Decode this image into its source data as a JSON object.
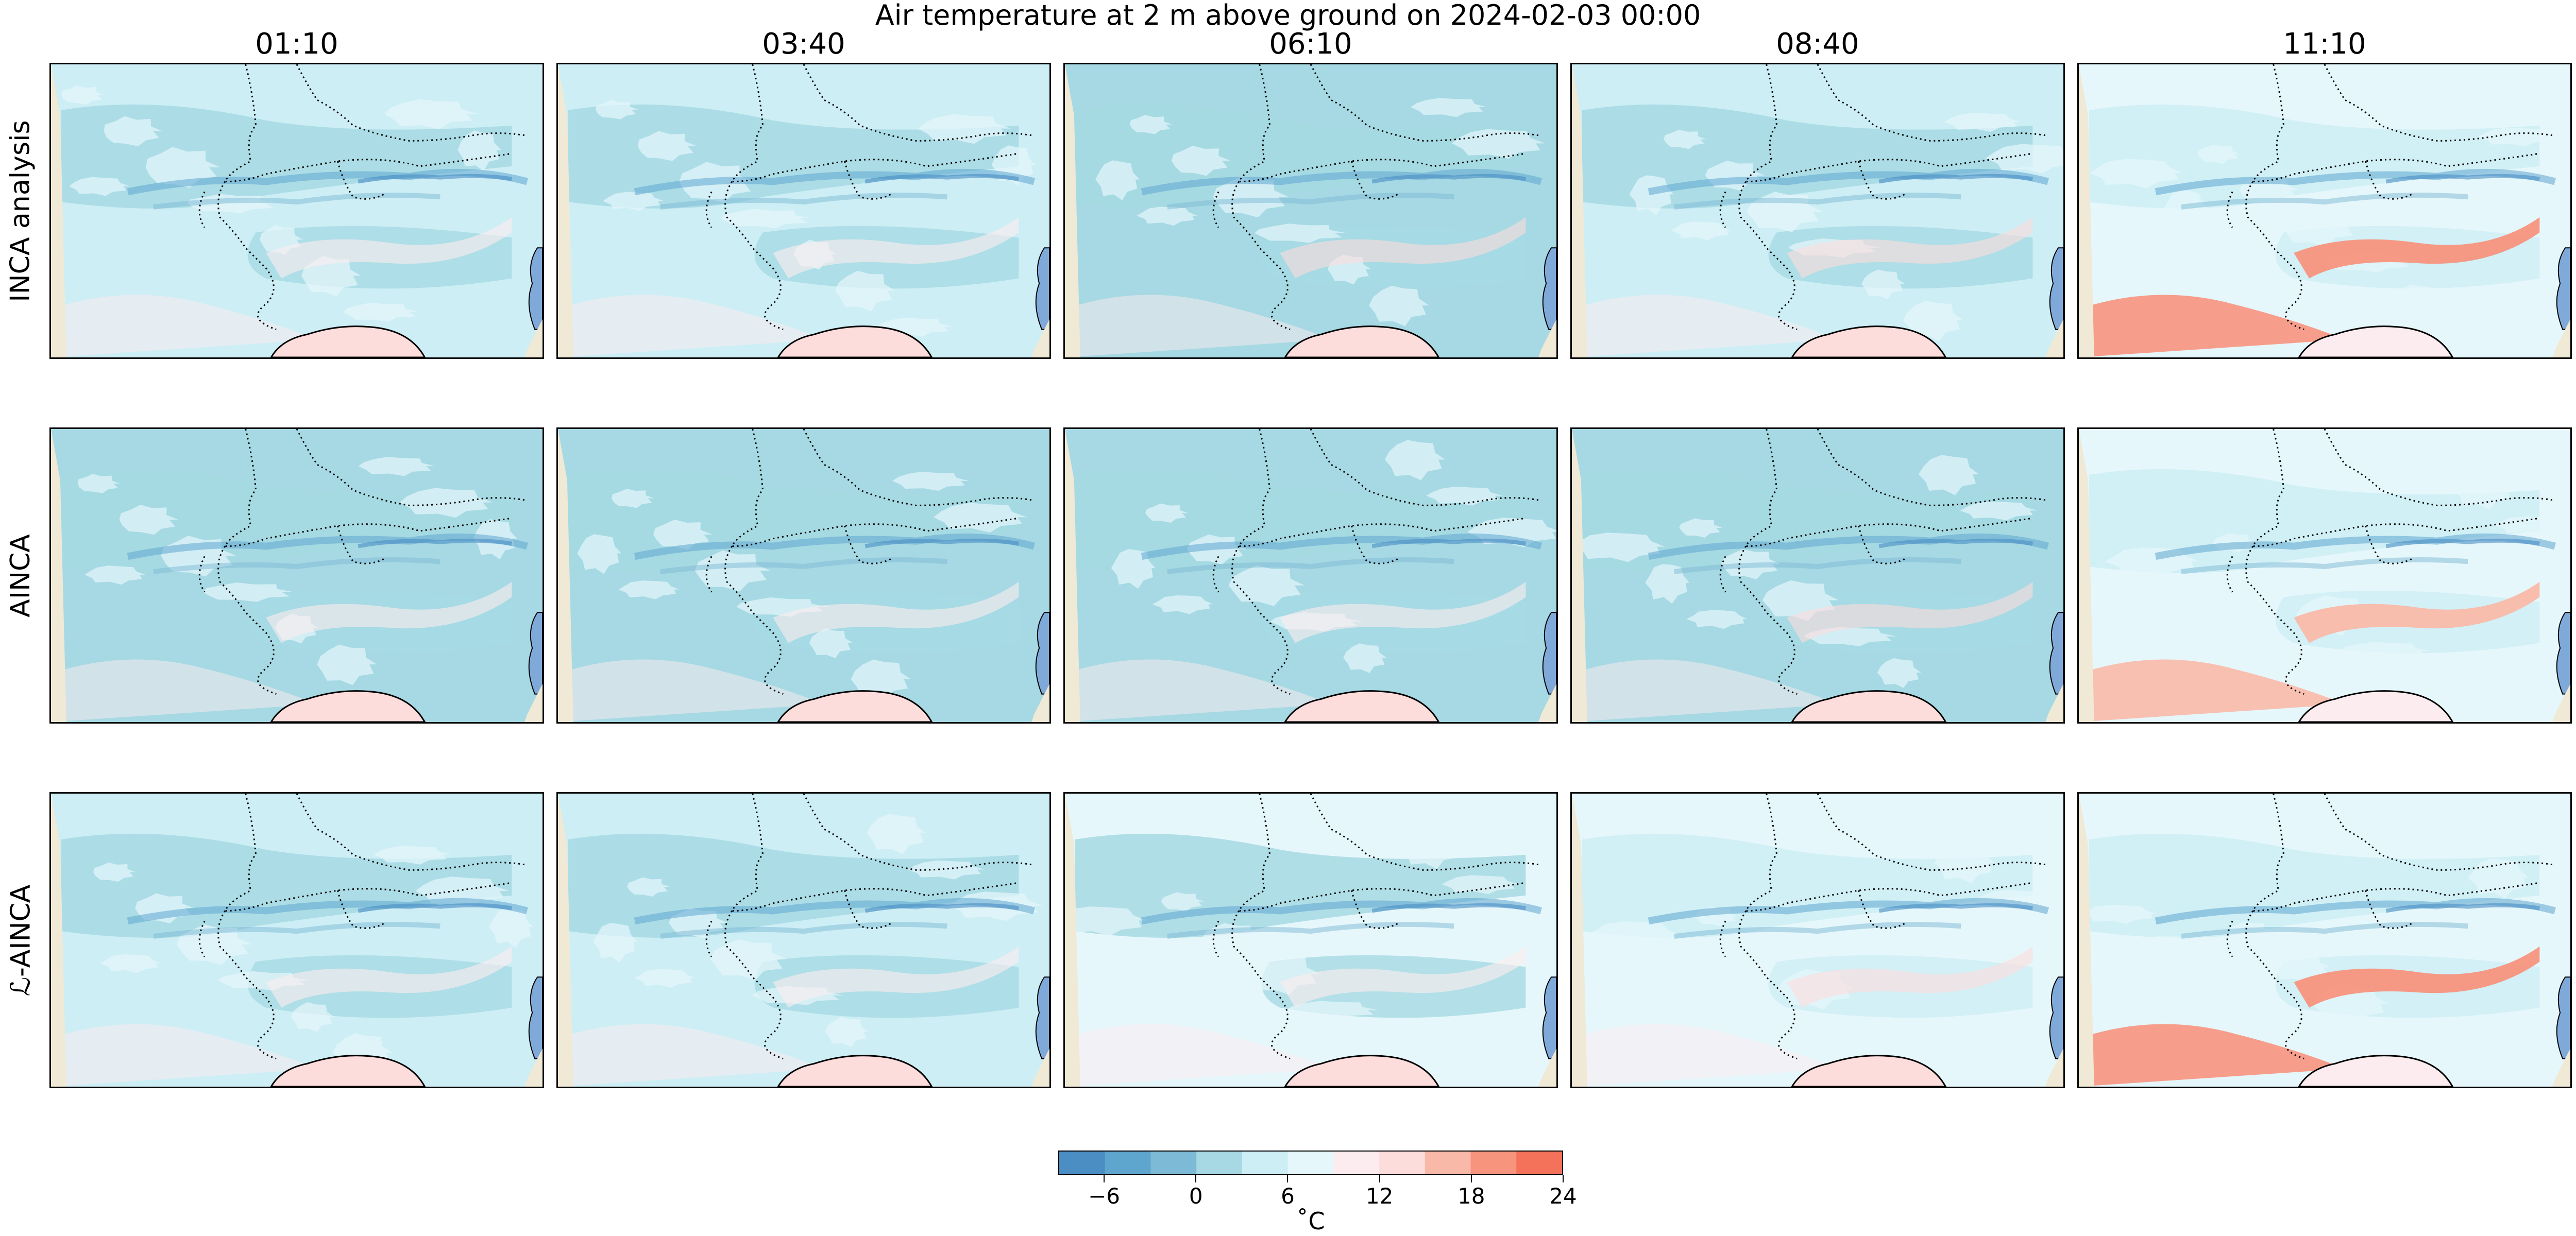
{
  "title": "Air temperature at 2 m above ground on 2024-02-03 00:00",
  "columns": [
    "01:10",
    "03:40",
    "06:10",
    "08:40",
    "11:10"
  ],
  "rows": [
    "INCA analysis",
    "AINCA",
    "ℒ-AINCA"
  ],
  "colorbar": {
    "ticks": [
      "−6",
      "0",
      "6",
      "12",
      "18",
      "24"
    ],
    "tick_values": [
      -6,
      0,
      6,
      12,
      18,
      24
    ],
    "range": [
      -9,
      24
    ],
    "unit": "˚C",
    "colors": [
      "#4a8ec4",
      "#5fa6cf",
      "#7dbad6",
      "#a6d9e3",
      "#cdeef5",
      "#e6f7fb",
      "#fdecef",
      "#fddcdc",
      "#f9b9a9",
      "#f7947e",
      "#f4715a"
    ]
  },
  "colors": {
    "land": "#efe9d6",
    "sea": "#7fa9d9",
    "border": "#000000"
  }
}
